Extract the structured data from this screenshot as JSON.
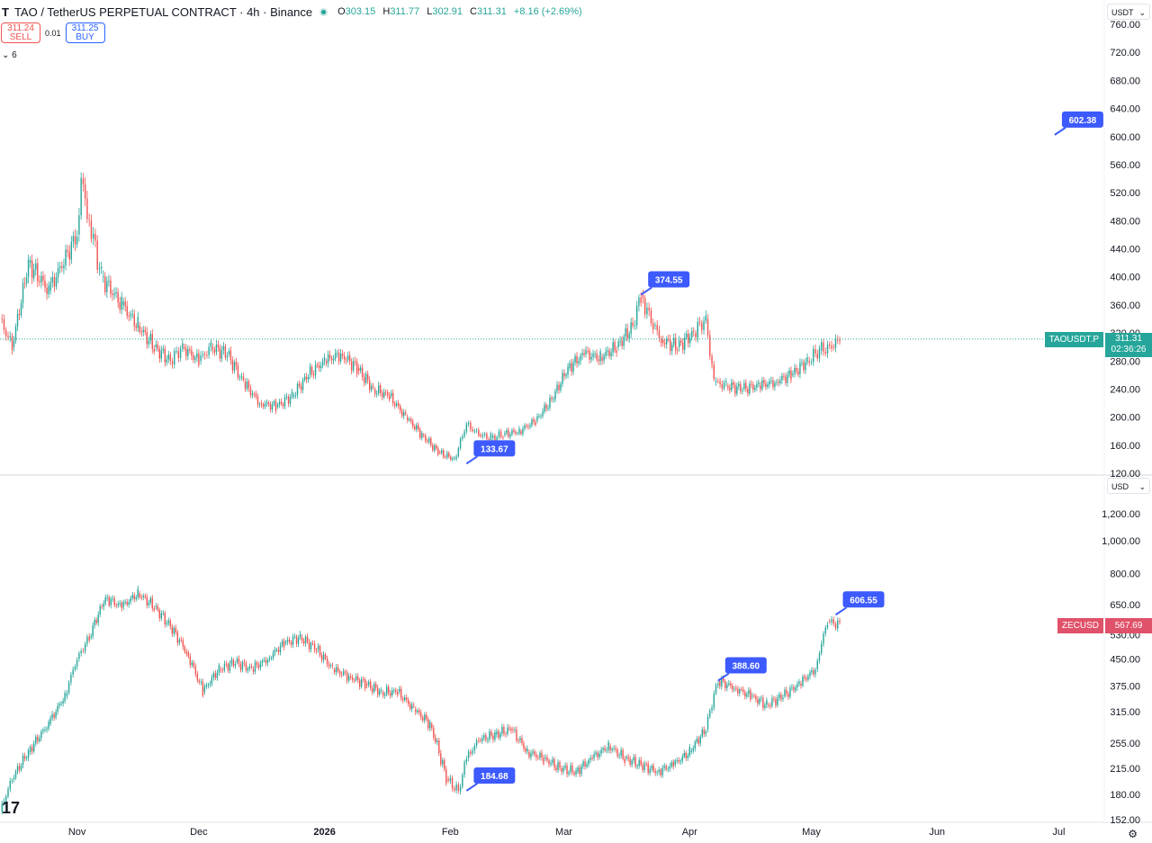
{
  "header": {
    "logo": "T",
    "title": "TAO / TetherUS PERPETUAL CONTRACT · 4h · Binance",
    "o_label": "O",
    "o": "303.15",
    "h_label": "H",
    "h": "311.77",
    "l_label": "L",
    "l": "302.91",
    "c_label": "C",
    "c": "311.31",
    "change": "+8.16 (+2.69%)"
  },
  "trade": {
    "sell_price": "311.24",
    "sell_label": "SELL",
    "spread": "0.01",
    "buy_price": "311.25",
    "buy_label": "BUY"
  },
  "collapse_label": "6",
  "colors": {
    "up": "#26a69a",
    "down": "#ef5350",
    "callout": "#3d5afe",
    "tao_tag": "#26a69a",
    "zec_tag": "#e0526a",
    "grid": "#f0f3fa"
  },
  "top_panel": {
    "currency": "USDT",
    "symbol_tag": "TAOUSDT.P",
    "last_price": "311.31",
    "countdown": "02:36:26",
    "axis_labels": [
      "760.00",
      "720.00",
      "680.00",
      "640.00",
      "600.00",
      "560.00",
      "520.00",
      "480.00",
      "440.00",
      "400.00",
      "360.00",
      "320.00",
      "280.00",
      "240.00",
      "200.00",
      "160.00",
      "120.00"
    ]
  },
  "bottom_panel": {
    "currency": "USD",
    "symbol_tag": "ZECUSD",
    "last_price": "567.69",
    "axis_labels": [
      "1,200.00",
      "1,000.00",
      "800.00",
      "650.00",
      "530.00",
      "450.00",
      "375.00",
      "315.00",
      "255.00",
      "215.00",
      "180.00",
      "152.00"
    ]
  },
  "time_axis": [
    "Nov",
    "Dec",
    "2026",
    "Feb",
    "Mar",
    "Apr",
    "May",
    "Jun",
    "Jul"
  ],
  "icons": {
    "tv_logo": "17",
    "settings": "⚙"
  },
  "chart_data": [
    {
      "type": "line",
      "title": "TAO / TetherUS PERPETUAL CONTRACT · 4h · Binance",
      "ylim": [
        120,
        760
      ],
      "x": [
        "Oct-13",
        "Oct-16",
        "Oct-20",
        "Oct-25",
        "Nov-01",
        "Nov-02",
        "Nov-04",
        "Nov-07",
        "Nov-12",
        "Nov-16",
        "Nov-20",
        "Nov-24",
        "Nov-27",
        "Dec-01",
        "Dec-04",
        "Dec-08",
        "Dec-12",
        "Dec-16",
        "Dec-20",
        "Dec-24",
        "Dec-28",
        "Jan-01",
        "Jan-05",
        "Jan-09",
        "Jan-13",
        "Jan-17",
        "Jan-21",
        "Jan-25",
        "Jan-29",
        "Feb-02",
        "Feb-05",
        "Feb-08",
        "Feb-11",
        "Feb-14",
        "Feb-18",
        "Feb-22",
        "Feb-26",
        "Mar-02",
        "Mar-06",
        "Mar-10",
        "Mar-14",
        "Mar-18",
        "Mar-20",
        "Mar-23",
        "Mar-25",
        "Mar-29",
        "Apr-02",
        "Apr-05",
        "Apr-07",
        "Apr-10",
        "Apr-14",
        "Apr-18",
        "Apr-22",
        "Apr-26",
        "Apr-30",
        "May-03",
        "May-06",
        "May-08"
      ],
      "series": [
        {
          "values": [
            340,
            300,
            420,
            380,
            460,
            540,
            480,
            400,
            360,
            330,
            300,
            280,
            300,
            280,
            300,
            290,
            250,
            220,
            215,
            230,
            260,
            280,
            290,
            270,
            240,
            230,
            200,
            175,
            150,
            140,
            190,
            175,
            170,
            175,
            180,
            195,
            225,
            270,
            290,
            285,
            300,
            330,
            374,
            330,
            310,
            300,
            320,
            340,
            250,
            245,
            240,
            245,
            250,
            260,
            280,
            295,
            300,
            311
          ]
        }
      ],
      "annotations": [
        {
          "label": "602.38",
          "x": "Jun-30",
          "y": 602.38
        },
        {
          "label": "374.55",
          "x": "Mar-20",
          "y": 374.55
        },
        {
          "label": "133.67",
          "x": "Feb-05",
          "y": 133.67
        }
      ]
    },
    {
      "type": "line",
      "title": "ZECUSD",
      "ylim": [
        152,
        1200
      ],
      "log_scale": true,
      "x": [
        "Oct-13",
        "Oct-16",
        "Oct-20",
        "Oct-25",
        "Oct-29",
        "Nov-01",
        "Nov-04",
        "Nov-08",
        "Nov-12",
        "Nov-16",
        "Nov-20",
        "Nov-24",
        "Nov-28",
        "Dec-02",
        "Dec-06",
        "Dec-10",
        "Dec-14",
        "Dec-18",
        "Dec-22",
        "Dec-26",
        "Dec-30",
        "Jan-03",
        "Jan-07",
        "Jan-11",
        "Jan-15",
        "Jan-19",
        "Jan-23",
        "Jan-27",
        "Jan-31",
        "Feb-03",
        "Feb-05",
        "Feb-08",
        "Feb-12",
        "Feb-16",
        "Feb-20",
        "Feb-24",
        "Feb-28",
        "Mar-04",
        "Mar-08",
        "Mar-12",
        "Mar-16",
        "Mar-20",
        "Mar-24",
        "Mar-28",
        "Apr-01",
        "Apr-05",
        "Apr-08",
        "Apr-12",
        "Apr-16",
        "Apr-20",
        "Apr-24",
        "Apr-28",
        "May-02",
        "May-05",
        "May-08"
      ],
      "series": [
        {
          "values": [
            160,
            200,
            240,
            290,
            350,
            450,
            520,
            680,
            640,
            700,
            640,
            560,
            470,
            360,
            420,
            440,
            420,
            450,
            500,
            520,
            480,
            420,
            400,
            380,
            360,
            360,
            320,
            290,
            200,
            184,
            230,
            260,
            270,
            280,
            240,
            230,
            215,
            210,
            230,
            250,
            230,
            220,
            210,
            220,
            240,
            280,
            388,
            370,
            350,
            330,
            350,
            380,
            420,
            580,
            567
          ]
        }
      ],
      "annotations": [
        {
          "label": "606.55",
          "x": "May-07",
          "y": 606.55
        },
        {
          "label": "388.60",
          "x": "Apr-08",
          "y": 388.6
        },
        {
          "label": "184.68",
          "x": "Feb-05",
          "y": 184.68
        }
      ]
    }
  ]
}
